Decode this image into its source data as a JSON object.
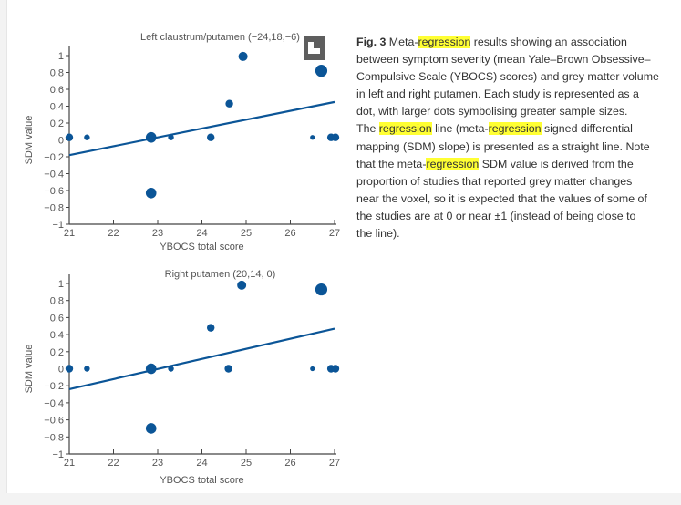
{
  "chart_data": [
    {
      "type": "scatter",
      "title": "Left claustrum/putamen (−24,18,−6)",
      "xlabel": "YBOCS total score",
      "ylabel": "SDM value",
      "xlim": [
        21,
        27
      ],
      "ylim": [
        -1,
        1
      ],
      "xticks": [
        "21",
        "22",
        "23",
        "24",
        "25",
        "26",
        "27"
      ],
      "yticks": [
        "−1",
        "−0.8",
        "−0.6",
        "−0.4",
        "−0.2",
        "0",
        "0.2",
        "0.4",
        "0.6",
        "0.8",
        "1"
      ],
      "grid": false,
      "points": [
        {
          "x": 21.0,
          "y": 0.03,
          "size": "medium"
        },
        {
          "x": 21.4,
          "y": 0.03,
          "size": "small"
        },
        {
          "x": 22.85,
          "y": 0.03,
          "size": "large"
        },
        {
          "x": 23.3,
          "y": 0.03,
          "size": "small"
        },
        {
          "x": 24.2,
          "y": 0.03,
          "size": "medium"
        },
        {
          "x": 24.62,
          "y": 0.43,
          "size": "medium"
        },
        {
          "x": 24.93,
          "y": 0.99,
          "size": "medium-large"
        },
        {
          "x": 22.85,
          "y": -0.63,
          "size": "large"
        },
        {
          "x": 26.5,
          "y": 0.03,
          "size": "xsmall"
        },
        {
          "x": 26.7,
          "y": 0.82,
          "size": "xlarge"
        },
        {
          "x": 26.92,
          "y": 0.03,
          "size": "medium"
        },
        {
          "x": 27.02,
          "y": 0.03,
          "size": "medium"
        }
      ],
      "regression_line": [
        [
          21,
          -0.18
        ],
        [
          27,
          0.45
        ]
      ],
      "color": "#0b5597"
    },
    {
      "type": "scatter",
      "title": "Right putamen (20,14, 0)",
      "xlabel": "YBOCS total score",
      "ylabel": "SDM value",
      "xlim": [
        21,
        27
      ],
      "ylim": [
        -1,
        1
      ],
      "xticks": [
        "21",
        "22",
        "23",
        "24",
        "25",
        "26",
        "27"
      ],
      "yticks": [
        "−1",
        "−0.8",
        "−0.6",
        "−0.4",
        "−0.2",
        "0",
        "0.2",
        "0.4",
        "0.6",
        "0.8",
        "1"
      ],
      "grid": false,
      "points": [
        {
          "x": 21.0,
          "y": 0,
          "size": "medium"
        },
        {
          "x": 21.4,
          "y": 0,
          "size": "small"
        },
        {
          "x": 22.85,
          "y": 0,
          "size": "large"
        },
        {
          "x": 23.3,
          "y": 0,
          "size": "small"
        },
        {
          "x": 24.2,
          "y": 0.48,
          "size": "medium"
        },
        {
          "x": 24.6,
          "y": 0,
          "size": "medium"
        },
        {
          "x": 24.9,
          "y": 0.98,
          "size": "medium-large"
        },
        {
          "x": 22.85,
          "y": -0.7,
          "size": "large"
        },
        {
          "x": 26.5,
          "y": 0,
          "size": "xsmall"
        },
        {
          "x": 26.7,
          "y": 0.93,
          "size": "xlarge"
        },
        {
          "x": 26.92,
          "y": 0,
          "size": "medium"
        },
        {
          "x": 27.02,
          "y": 0,
          "size": "medium"
        }
      ],
      "regression_line": [
        [
          21,
          -0.24
        ],
        [
          27,
          0.47
        ]
      ],
      "color": "#0b5597"
    }
  ],
  "expand_icon": "expand-arrow-icon",
  "highlight_color": "#ffff33",
  "caption": {
    "label": "Fig. 3",
    "lines": [
      [
        {
          "t": " Meta-"
        },
        {
          "t": "regression",
          "hl": true
        },
        {
          "t": " results showing an association"
        }
      ],
      [
        {
          "t": "between symptom severity (mean Yale–Brown Obsessive–"
        }
      ],
      [
        {
          "t": "Compulsive Scale (YBOCS) scores) and grey matter volume"
        }
      ],
      [
        {
          "t": "in left and right putamen. Each study is represented as a"
        }
      ],
      [
        {
          "t": "dot, with larger dots symbolising greater sample sizes."
        }
      ],
      [
        {
          "t": "The "
        },
        {
          "t": "regression",
          "hl": true
        },
        {
          "t": " line (meta-"
        },
        {
          "t": "regression",
          "hl": true
        },
        {
          "t": " signed differential"
        }
      ],
      [
        {
          "t": "mapping (SDM) slope) is presented as a straight line. Note"
        }
      ],
      [
        {
          "t": "that the meta-"
        },
        {
          "t": "regression",
          "hl": true
        },
        {
          "t": " SDM value is derived from the"
        }
      ],
      [
        {
          "t": "proportion of studies that reported grey matter changes"
        }
      ],
      [
        {
          "t": "near the voxel, so it is expected that the values of some of"
        }
      ],
      [
        {
          "t": "the studies are at 0 or near ±1 (instead of being close to"
        }
      ],
      [
        {
          "t": "the line)."
        }
      ]
    ]
  }
}
